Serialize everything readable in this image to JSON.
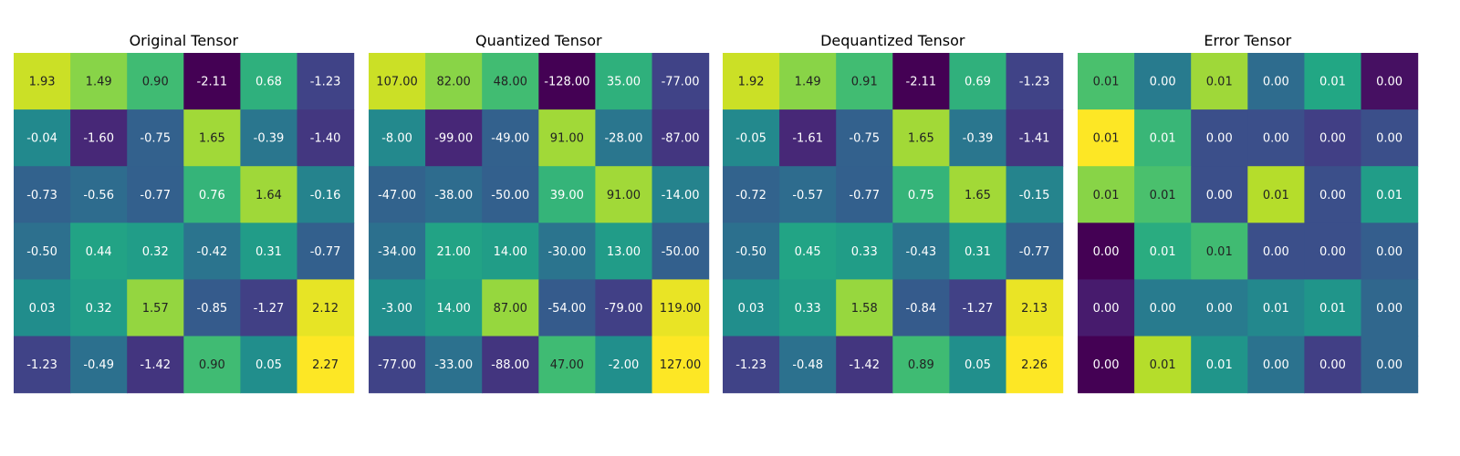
{
  "chart_data": [
    {
      "type": "heatmap",
      "title": "Original Tensor",
      "colormap": "viridis",
      "values": [
        [
          1.93,
          1.49,
          0.9,
          -2.11,
          0.68,
          -1.23
        ],
        [
          -0.04,
          -1.6,
          -0.75,
          1.65,
          -0.39,
          -1.4
        ],
        [
          -0.73,
          -0.56,
          -0.77,
          0.76,
          1.64,
          -0.16
        ],
        [
          -0.5,
          0.44,
          0.32,
          -0.42,
          0.31,
          -0.77
        ],
        [
          0.03,
          0.32,
          1.57,
          -0.85,
          -1.27,
          2.12
        ],
        [
          -1.23,
          -0.49,
          -1.42,
          0.9,
          0.05,
          2.27
        ]
      ]
    },
    {
      "type": "heatmap",
      "title": "Quantized Tensor",
      "colormap": "viridis",
      "values": [
        [
          107.0,
          82.0,
          48.0,
          -128.0,
          35.0,
          -77.0
        ],
        [
          -8.0,
          -99.0,
          -49.0,
          91.0,
          -28.0,
          -87.0
        ],
        [
          -47.0,
          -38.0,
          -50.0,
          39.0,
          91.0,
          -14.0
        ],
        [
          -34.0,
          21.0,
          14.0,
          -30.0,
          13.0,
          -50.0
        ],
        [
          -3.0,
          14.0,
          87.0,
          -54.0,
          -79.0,
          119.0
        ],
        [
          -77.0,
          -33.0,
          -88.0,
          47.0,
          -2.0,
          127.0
        ]
      ]
    },
    {
      "type": "heatmap",
      "title": "Dequantized Tensor",
      "colormap": "viridis",
      "values": [
        [
          1.92,
          1.49,
          0.91,
          -2.11,
          0.69,
          -1.23
        ],
        [
          -0.05,
          -1.61,
          -0.75,
          1.65,
          -0.39,
          -1.41
        ],
        [
          -0.72,
          -0.57,
          -0.77,
          0.75,
          1.65,
          -0.15
        ],
        [
          -0.5,
          0.45,
          0.33,
          -0.43,
          0.31,
          -0.77
        ],
        [
          0.03,
          0.33,
          1.58,
          -0.84,
          -1.27,
          2.13
        ],
        [
          -1.23,
          -0.48,
          -1.42,
          0.89,
          0.05,
          2.26
        ]
      ]
    },
    {
      "type": "heatmap",
      "title": "Error Tensor",
      "colormap": "viridis",
      "values": [
        [
          0.01,
          0.0,
          0.01,
          0.0,
          0.01,
          0.0
        ],
        [
          0.01,
          0.01,
          0.0,
          0.0,
          0.0,
          0.0
        ],
        [
          0.01,
          0.01,
          0.0,
          0.01,
          0.0,
          0.01
        ],
        [
          0.0,
          0.01,
          0.01,
          0.0,
          0.0,
          0.0
        ],
        [
          0.0,
          0.0,
          0.0,
          0.01,
          0.01,
          0.0
        ],
        [
          0.0,
          0.01,
          0.01,
          0.0,
          0.0,
          0.0
        ]
      ],
      "color_values": [
        [
          0.0072,
          0.0045,
          0.0085,
          0.004,
          0.0062,
          0.0012
        ],
        [
          0.0098,
          0.0068,
          0.003,
          0.003,
          0.0025,
          0.003
        ],
        [
          0.0082,
          0.0072,
          0.003,
          0.0088,
          0.003,
          0.0058
        ],
        [
          0.0008,
          0.0064,
          0.007,
          0.003,
          0.003,
          0.0035
        ],
        [
          0.0015,
          0.0045,
          0.0045,
          0.005,
          0.0055,
          0.0038
        ],
        [
          0.0008,
          0.0088,
          0.0055,
          0.0042,
          0.0025,
          0.0038
        ]
      ]
    }
  ]
}
